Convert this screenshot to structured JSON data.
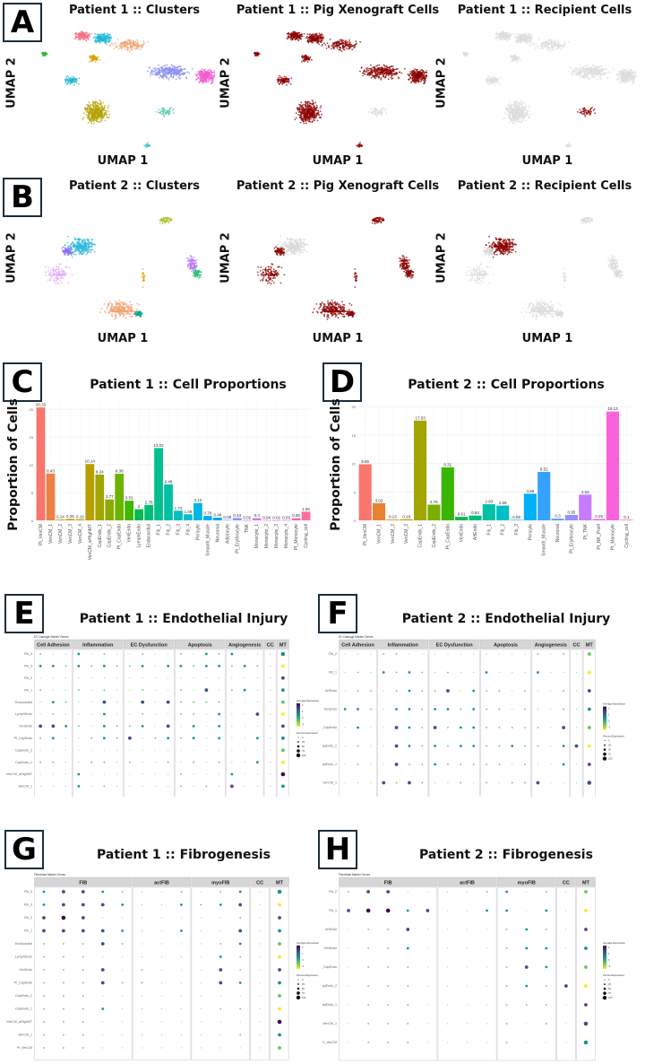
{
  "panels": {
    "A": {
      "letter": "A",
      "titles": [
        "Patient 1 :: Clusters",
        "Patient 1 :: Pig Xenograft Cells",
        "Patient 1 :: Recipient Cells"
      ],
      "xlabel": "UMAP 1",
      "ylabel": "UMAP 2"
    },
    "B": {
      "letter": "B",
      "titles": [
        "Patient 2 :: Clusters",
        "Patient 2 :: Pig Xenograft Cells",
        "Patient 2 :: Recipient Cells"
      ],
      "xlabel": "UMAP 1",
      "ylabel": "UMAP 2"
    },
    "C": {
      "letter": "C"
    },
    "D": {
      "letter": "D"
    },
    "E": {
      "letter": "E"
    },
    "F": {
      "letter": "F"
    },
    "G": {
      "letter": "G"
    },
    "H": {
      "letter": "H"
    }
  },
  "colors": {
    "xeno": "#8b0000",
    "recipient_gray": "#cfcfcf",
    "panel_border": "#1c2e3a"
  },
  "chart_data": [
    {
      "id": "C",
      "type": "bar",
      "title": "Patient 1 :: Cell Proportions",
      "xlabel": "",
      "ylabel": "Proportion of Cells",
      "ylim": [
        0,
        21
      ],
      "yticks": [
        0,
        5,
        10,
        15,
        20
      ],
      "grid": true,
      "categories": [
        "Pt_VenCM",
        "VenCM_1",
        "VenCM_2",
        "VenCM_3",
        "VenCM_4",
        "VenCM_wHighMT",
        "CapEndo_1",
        "CapEndo_2",
        "Pt_CapEndo",
        "VenEndo",
        "LymphEndo",
        "Endocardial",
        "Fib_1",
        "Fib_2",
        "Fib_3",
        "Fib_4",
        "Pericyte",
        "Smooth_Muscle",
        "Neuronal",
        "Adipocyte",
        "Pt_Erythrocyte",
        "TNK",
        "Monocyte_1",
        "Monocyte_2",
        "Monocyte_3",
        "Monocyte_4",
        "Pt_Monocyte",
        "Cycling_cell"
      ],
      "values": [
        20.33,
        8.43,
        0.14,
        0.25,
        0.19,
        10.14,
        8.24,
        3.77,
        8.38,
        3.53,
        2,
        2.78,
        13.02,
        6.48,
        1.73,
        1.09,
        3.12,
        0.79,
        0.48,
        0.08,
        0.43,
        0.02,
        0.4,
        0.04,
        0.02,
        0.03,
        0.38,
        1.56
      ],
      "colors": [
        "#f8766d",
        "#ee8044",
        "#e38900",
        "#d79000",
        "#c99800",
        "#b79f00",
        "#a3a500",
        "#8cab00",
        "#6eb200",
        "#3fb800",
        "#00bb4e",
        "#00bf74",
        "#00c08e",
        "#00c1a7",
        "#00bfbd",
        "#00bcd4",
        "#00b6e8",
        "#00aef9",
        "#00a5ff",
        "#619cff",
        "#9590ff",
        "#b983ff",
        "#d177ff",
        "#e36ef6",
        "#f066ea",
        "#fa62db",
        "#ff62bc",
        "#ff6c9d"
      ]
    },
    {
      "id": "D",
      "type": "bar",
      "title": "Patient 2 :: Cell Proportions",
      "xlabel": "",
      "ylabel": "Proportion of Cells",
      "ylim": [
        0,
        20.5
      ],
      "yticks": [
        0,
        5,
        10,
        15,
        20
      ],
      "grid": true,
      "categories": [
        "Pt_VenCM",
        "VenCM_1",
        "VenCM_2",
        "VenCM_3",
        "CapEndo_1",
        "CapEndo_2",
        "Pt_CapEndo",
        "VenEndo",
        "ArtEndo",
        "Fib_1",
        "Fib_2",
        "Fib_3",
        "Pericyte",
        "Smooth_Muscle",
        "Neuronal",
        "Pt_Erythrocyte",
        "Pt_TNK",
        "Pt_NK_Prolif",
        "Pt_Monocyte",
        "Cycling_cell"
      ],
      "values": [
        9.86,
        3.02,
        0.13,
        0.18,
        17.53,
        2.76,
        9.32,
        0.61,
        0.84,
        2.83,
        2.59,
        0.09,
        4.68,
        8.52,
        0.3,
        0.95,
        4.53,
        0.25,
        19.13,
        0.1
      ],
      "colors": [
        "#f8766d",
        "#ea8331",
        "#d89000",
        "#c09b00",
        "#a3a500",
        "#7cae00",
        "#39b600",
        "#00bb4e",
        "#00bf7d",
        "#00c1a3",
        "#00bfc4",
        "#00bae0",
        "#00b0f6",
        "#35a2ff",
        "#619cff",
        "#9590ff",
        "#c77cff",
        "#e76bf3",
        "#fa62db",
        "#ff62bc"
      ]
    },
    {
      "id": "E",
      "type": "scatter",
      "subtype": "dotplot",
      "title": "Patient 1 :: Endothelial Injury",
      "subtitle": "EC Damage Marker Genes",
      "groups": [
        {
          "name": "Cell Adhesion",
          "n": 3
        },
        {
          "name": "Inflammation",
          "n": 4
        },
        {
          "name": "EC Dysfunction",
          "n": 4
        },
        {
          "name": "Apoptosis",
          "n": 4
        },
        {
          "name": "Angiogenesis",
          "n": 3
        },
        {
          "name": "CC",
          "n": 1
        },
        {
          "name": "MT",
          "n": 1
        }
      ],
      "rows": [
        "Fib_4",
        "Fib_3",
        "Fib_2",
        "Fib_1",
        "Endocardial",
        "LymphEndo",
        "VenEndo",
        "Pt_CapEndo",
        "CapEndo_2",
        "CapEndo_1",
        "VenCM_wHighMT",
        "VenCM_1",
        "Pt_VenCM"
      ],
      "legend": {
        "color_title": "Average Expression",
        "color_ticks": [
          "2",
          "1",
          "0",
          "-1"
        ],
        "size_title": "Percent Expressed",
        "size_ticks": [
          "0",
          "25",
          "50",
          "75",
          "100"
        ]
      },
      "matrix": [
        [
          1,
          0,
          0,
          2,
          0,
          1,
          0,
          0,
          1,
          0,
          0,
          1,
          0,
          2,
          1,
          2,
          0,
          0,
          0,
          4
        ],
        [
          2,
          2,
          1,
          2,
          1,
          2,
          1,
          1,
          2,
          0,
          2,
          2,
          1,
          2,
          2,
          1,
          2,
          1,
          0,
          3
        ],
        [
          0,
          0,
          0,
          0,
          0,
          0,
          0,
          0,
          0,
          0,
          0,
          0,
          0,
          0,
          0,
          0,
          0,
          0,
          0,
          3
        ],
        [
          1,
          0,
          0,
          1,
          0,
          1,
          0,
          0,
          1,
          0,
          0,
          1,
          0,
          3,
          0,
          1,
          2,
          0,
          0,
          3
        ],
        [
          0,
          2,
          1,
          0,
          0,
          3,
          0,
          0,
          3,
          0,
          3,
          1,
          1,
          1,
          1,
          0,
          0,
          0,
          0,
          3
        ],
        [
          0,
          1,
          0,
          0,
          0,
          2,
          0,
          0,
          1,
          0,
          0,
          1,
          1,
          0,
          2,
          0,
          0,
          3,
          0,
          3
        ],
        [
          3,
          3,
          2,
          1,
          0,
          2,
          1,
          1,
          2,
          0,
          3,
          0,
          2,
          0,
          2,
          0,
          0,
          0,
          0,
          3
        ],
        [
          1,
          2,
          0,
          0,
          1,
          2,
          1,
          3,
          0,
          1,
          2,
          1,
          2,
          0,
          2,
          0,
          0,
          2,
          0,
          3
        ],
        [
          0,
          0,
          0,
          0,
          0,
          0,
          0,
          0,
          0,
          0,
          0,
          0,
          0,
          0,
          0,
          0,
          0,
          0,
          0,
          3
        ],
        [
          1,
          1,
          0,
          0,
          1,
          1,
          0,
          1,
          0,
          0,
          1,
          0,
          1,
          0,
          1,
          0,
          0,
          2,
          0,
          3
        ],
        [
          0,
          0,
          0,
          2,
          0,
          0,
          0,
          0,
          0,
          0,
          0,
          1,
          0,
          0,
          0,
          2,
          0,
          0,
          0,
          4
        ],
        [
          0,
          0,
          0,
          2,
          0,
          1,
          0,
          0,
          0,
          0,
          0,
          1,
          0,
          1,
          0,
          3,
          0,
          0,
          0,
          3
        ],
        [
          0,
          0,
          0,
          0,
          0,
          0,
          0,
          0,
          0,
          0,
          0,
          0,
          0,
          0,
          0,
          0,
          0,
          0,
          0,
          3
        ]
      ]
    },
    {
      "id": "F",
      "type": "scatter",
      "subtype": "dotplot",
      "title": "Patient 2 :: Endothelial Injury",
      "subtitle": "EC Damage Marker Genes",
      "groups": [
        {
          "name": "Cell Adhesion",
          "n": 3
        },
        {
          "name": "Inflammation",
          "n": 4
        },
        {
          "name": "EC Dysfunction",
          "n": 4
        },
        {
          "name": "Apoptosis",
          "n": 4
        },
        {
          "name": "Angiogenesis",
          "n": 3
        },
        {
          "name": "CC",
          "n": 1
        },
        {
          "name": "MT",
          "n": 1
        }
      ],
      "rows": [
        "Fib_2",
        "Fib_1",
        "ArtEndo",
        "VenEndo",
        "Pt_CapEndo",
        "CapEndo_2",
        "CapEndo_1",
        "VenCM_1",
        "Pt_VenCM"
      ],
      "legend": {
        "color_title": "Average Expression",
        "color_ticks": [
          "2",
          "1",
          "0",
          "-1"
        ],
        "size_title": "Percent Expressed",
        "size_ticks": [
          "0",
          "25",
          "50",
          "75",
          "100"
        ]
      },
      "matrix": [
        [
          0,
          0,
          0,
          1,
          1,
          0,
          0,
          0,
          0,
          0,
          0,
          0,
          0,
          0,
          0,
          1,
          0,
          1,
          0,
          3
        ],
        [
          0,
          1,
          0,
          2,
          1,
          2,
          1,
          0,
          1,
          0,
          0,
          2,
          0,
          0,
          0,
          2,
          0,
          0,
          0,
          3
        ],
        [
          0,
          1,
          1,
          0,
          1,
          2,
          1,
          1,
          3,
          0,
          2,
          1,
          1,
          0,
          1,
          0,
          0,
          1,
          0,
          3
        ],
        [
          2,
          2,
          1,
          0,
          2,
          2,
          1,
          2,
          2,
          1,
          2,
          1,
          1,
          0,
          1,
          0,
          0,
          1,
          0,
          3
        ],
        [
          0,
          2,
          0,
          0,
          3,
          2,
          1,
          3,
          1,
          2,
          2,
          1,
          1,
          1,
          1,
          1,
          0,
          3,
          0,
          3
        ],
        [
          0,
          1,
          0,
          0,
          3,
          2,
          1,
          2,
          1,
          2,
          2,
          1,
          1,
          2,
          1,
          1,
          0,
          2,
          3,
          3
        ],
        [
          0,
          1,
          0,
          0,
          3,
          1,
          1,
          2,
          1,
          1,
          1,
          1,
          1,
          0,
          1,
          0,
          0,
          2,
          0,
          3
        ],
        [
          0,
          0,
          0,
          3,
          1,
          3,
          1,
          0,
          0,
          1,
          0,
          1,
          0,
          1,
          1,
          3,
          0,
          0,
          0,
          4
        ],
        [
          0,
          0,
          0,
          1,
          1,
          1,
          0,
          0,
          0,
          0,
          0,
          0,
          0,
          0,
          0,
          2,
          0,
          1,
          0,
          4
        ]
      ]
    },
    {
      "id": "G",
      "type": "scatter",
      "subtype": "dotplot",
      "title": "Patient 1 :: Fibrogenesis",
      "subtitle": "Fibroblast Marker Genes",
      "groups": [
        {
          "name": "FIB",
          "n": 5
        },
        {
          "name": "actFIB",
          "n": 3
        },
        {
          "name": "myoFIB",
          "n": 3
        },
        {
          "name": "CC",
          "n": 1
        },
        {
          "name": "MT",
          "n": 1
        }
      ],
      "rows": [
        "Fib_4",
        "Fib_3",
        "Fib_2",
        "Fib_1",
        "Endocardial",
        "LymphEndo",
        "VenEndo",
        "Pt_CapEndo",
        "CapEndo_2",
        "CapEndo_1",
        "VenCM_wHighMT",
        "VenCM_1",
        "Pt_VenCM"
      ],
      "legend": {
        "color_title": "Average Expression",
        "color_ticks": [
          "2",
          "1",
          "0",
          "-1"
        ],
        "size_title": "Percent Expressed",
        "size_ticks": [
          "0",
          "25",
          "50",
          "75",
          "100"
        ]
      },
      "matrix": [
        [
          2,
          3,
          3,
          2,
          1,
          0,
          0,
          1,
          0,
          1,
          2,
          0,
          4
        ],
        [
          2,
          3,
          3,
          3,
          2,
          0,
          0,
          2,
          1,
          2,
          3,
          0,
          3
        ],
        [
          3,
          4,
          3,
          0,
          0,
          0,
          0,
          0,
          0,
          0,
          1,
          0,
          3
        ],
        [
          3,
          3,
          3,
          3,
          2,
          0,
          0,
          2,
          0,
          0,
          3,
          0,
          3
        ],
        [
          1,
          1,
          1,
          3,
          1,
          0,
          0,
          0,
          0,
          1,
          2,
          0,
          3
        ],
        [
          1,
          1,
          1,
          0,
          0,
          0,
          0,
          0,
          0,
          2,
          1,
          0,
          3
        ],
        [
          1,
          1,
          1,
          3,
          0,
          1,
          0,
          0,
          0,
          3,
          1,
          0,
          3
        ],
        [
          1,
          1,
          1,
          3,
          1,
          1,
          0,
          0,
          0,
          3,
          2,
          0,
          3
        ],
        [
          1,
          1,
          1,
          0,
          0,
          0,
          0,
          0,
          0,
          0,
          0,
          0,
          3
        ],
        [
          1,
          1,
          1,
          2,
          0,
          0,
          0,
          0,
          0,
          1,
          1,
          0,
          3
        ],
        [
          1,
          1,
          1,
          0,
          0,
          0,
          0,
          0,
          0,
          0,
          0,
          0,
          4
        ],
        [
          1,
          1,
          1,
          0,
          0,
          0,
          0,
          0,
          0,
          0,
          1,
          0,
          3
        ],
        [
          1,
          1,
          1,
          0,
          0,
          0,
          0,
          0,
          0,
          0,
          0,
          0,
          3
        ]
      ]
    },
    {
      "id": "H",
      "type": "scatter",
      "subtype": "dotplot",
      "title": "Patient 2 :: Fibrogenesis",
      "subtitle": "Fibroblast Marker Genes",
      "groups": [
        {
          "name": "FIB",
          "n": 5
        },
        {
          "name": "actFIB",
          "n": 3
        },
        {
          "name": "myoFIB",
          "n": 3
        },
        {
          "name": "CC",
          "n": 1
        },
        {
          "name": "MT",
          "n": 1
        }
      ],
      "rows": [
        "Fib_2",
        "Fib_1",
        "ArtEndo",
        "VenEndo",
        "Pt_CapEndo",
        "CapEndo_2",
        "CapEndo_1",
        "VenCM_1",
        "Pt_VenCM"
      ],
      "legend": {
        "color_title": "Average Expression",
        "color_ticks": [
          "2",
          "1",
          "0",
          "-1"
        ],
        "size_title": "Percent Expressed",
        "size_ticks": [
          "0",
          "25",
          "50",
          "75",
          "100"
        ]
      },
      "matrix": [
        [
          1,
          3,
          3,
          0,
          0,
          0,
          0,
          1,
          2,
          0,
          1,
          0,
          3
        ],
        [
          3,
          4,
          4,
          2,
          3,
          0,
          0,
          2,
          2,
          0,
          2,
          0,
          3
        ],
        [
          0,
          1,
          1,
          3,
          0,
          0,
          0,
          0,
          1,
          2,
          1,
          0,
          3
        ],
        [
          0,
          1,
          1,
          2,
          0,
          0,
          0,
          0,
          1,
          2,
          2,
          0,
          3
        ],
        [
          0,
          1,
          1,
          1,
          0,
          0,
          0,
          0,
          1,
          3,
          2,
          0,
          3
        ],
        [
          0,
          1,
          1,
          1,
          0,
          0,
          0,
          0,
          1,
          2,
          1,
          3,
          3
        ],
        [
          0,
          1,
          1,
          1,
          0,
          0,
          0,
          0,
          1,
          1,
          1,
          0,
          3
        ],
        [
          0,
          1,
          1,
          1,
          0,
          0,
          0,
          0,
          1,
          0,
          1,
          0,
          4
        ],
        [
          0,
          1,
          1,
          1,
          0,
          0,
          0,
          0,
          1,
          0,
          0,
          0,
          4
        ]
      ]
    }
  ]
}
